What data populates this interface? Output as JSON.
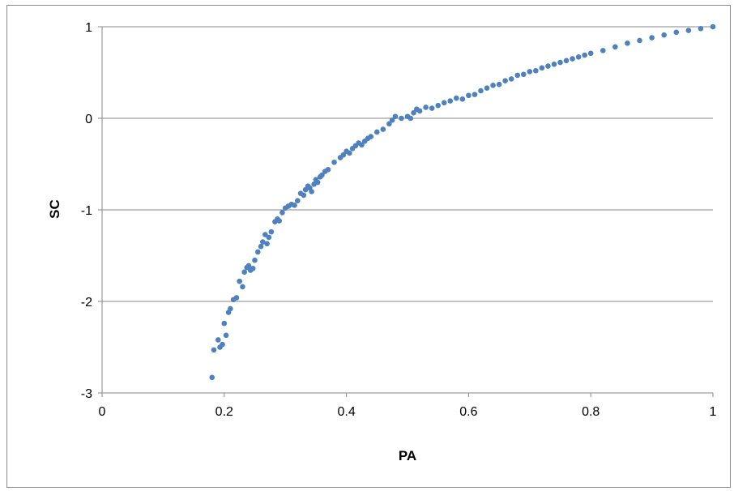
{
  "chart_data": {
    "type": "scatter",
    "title": "",
    "xlabel": "PA",
    "ylabel": "SC",
    "xlim": [
      0,
      1
    ],
    "ylim": [
      -3,
      1
    ],
    "x_ticks": [
      "0",
      "0.2",
      "0.4",
      "0.6",
      "0.8",
      "1"
    ],
    "y_ticks": [
      "1",
      "0",
      "-1",
      "-2",
      "-3"
    ],
    "grid": "horizontal",
    "legend": "none",
    "marker_color": "#4f81bd",
    "series": [
      {
        "points": [
          [
            0.18,
            -2.83
          ],
          [
            0.183,
            -2.53
          ],
          [
            0.19,
            -2.42
          ],
          [
            0.193,
            -2.5
          ],
          [
            0.197,
            -2.47
          ],
          [
            0.2,
            -2.24
          ],
          [
            0.203,
            -2.37
          ],
          [
            0.207,
            -2.12
          ],
          [
            0.21,
            -2.08
          ],
          [
            0.215,
            -1.98
          ],
          [
            0.22,
            -1.96
          ],
          [
            0.225,
            -1.78
          ],
          [
            0.23,
            -1.84
          ],
          [
            0.233,
            -1.68
          ],
          [
            0.237,
            -1.63
          ],
          [
            0.24,
            -1.61
          ],
          [
            0.243,
            -1.66
          ],
          [
            0.247,
            -1.64
          ],
          [
            0.25,
            -1.55
          ],
          [
            0.255,
            -1.46
          ],
          [
            0.26,
            -1.4
          ],
          [
            0.263,
            -1.35
          ],
          [
            0.267,
            -1.27
          ],
          [
            0.27,
            -1.37
          ],
          [
            0.273,
            -1.3
          ],
          [
            0.277,
            -1.24
          ],
          [
            0.283,
            -1.13
          ],
          [
            0.287,
            -1.1
          ],
          [
            0.29,
            -1.12
          ],
          [
            0.295,
            -1.03
          ],
          [
            0.3,
            -0.98
          ],
          [
            0.305,
            -0.96
          ],
          [
            0.31,
            -0.94
          ],
          [
            0.315,
            -0.95
          ],
          [
            0.32,
            -0.9
          ],
          [
            0.325,
            -0.82
          ],
          [
            0.33,
            -0.84
          ],
          [
            0.333,
            -0.78
          ],
          [
            0.337,
            -0.74
          ],
          [
            0.34,
            -0.76
          ],
          [
            0.343,
            -0.8
          ],
          [
            0.347,
            -0.72
          ],
          [
            0.35,
            -0.67
          ],
          [
            0.353,
            -0.7
          ],
          [
            0.357,
            -0.64
          ],
          [
            0.36,
            -0.62
          ],
          [
            0.365,
            -0.58
          ],
          [
            0.37,
            -0.56
          ],
          [
            0.38,
            -0.48
          ],
          [
            0.39,
            -0.43
          ],
          [
            0.395,
            -0.4
          ],
          [
            0.4,
            -0.36
          ],
          [
            0.405,
            -0.38
          ],
          [
            0.41,
            -0.33
          ],
          [
            0.415,
            -0.3
          ],
          [
            0.42,
            -0.27
          ],
          [
            0.425,
            -0.29
          ],
          [
            0.43,
            -0.25
          ],
          [
            0.435,
            -0.22
          ],
          [
            0.44,
            -0.2
          ],
          [
            0.45,
            -0.15
          ],
          [
            0.46,
            -0.12
          ],
          [
            0.47,
            -0.06
          ],
          [
            0.475,
            -0.02
          ],
          [
            0.48,
            0.02
          ],
          [
            0.49,
            0.0
          ],
          [
            0.5,
            0.02
          ],
          [
            0.505,
            0.0
          ],
          [
            0.51,
            0.06
          ],
          [
            0.515,
            0.1
          ],
          [
            0.52,
            0.08
          ],
          [
            0.53,
            0.12
          ],
          [
            0.54,
            0.11
          ],
          [
            0.55,
            0.14
          ],
          [
            0.56,
            0.17
          ],
          [
            0.57,
            0.19
          ],
          [
            0.58,
            0.22
          ],
          [
            0.59,
            0.21
          ],
          [
            0.6,
            0.25
          ],
          [
            0.61,
            0.26
          ],
          [
            0.62,
            0.3
          ],
          [
            0.63,
            0.33
          ],
          [
            0.64,
            0.36
          ],
          [
            0.65,
            0.37
          ],
          [
            0.66,
            0.41
          ],
          [
            0.67,
            0.43
          ],
          [
            0.68,
            0.47
          ],
          [
            0.69,
            0.48
          ],
          [
            0.7,
            0.51
          ],
          [
            0.71,
            0.52
          ],
          [
            0.72,
            0.55
          ],
          [
            0.73,
            0.57
          ],
          [
            0.74,
            0.59
          ],
          [
            0.75,
            0.61
          ],
          [
            0.76,
            0.63
          ],
          [
            0.77,
            0.65
          ],
          [
            0.78,
            0.67
          ],
          [
            0.79,
            0.69
          ],
          [
            0.8,
            0.71
          ],
          [
            0.82,
            0.74
          ],
          [
            0.84,
            0.78
          ],
          [
            0.86,
            0.82
          ],
          [
            0.88,
            0.85
          ],
          [
            0.9,
            0.88
          ],
          [
            0.92,
            0.91
          ],
          [
            0.94,
            0.94
          ],
          [
            0.96,
            0.96
          ],
          [
            0.98,
            0.98
          ],
          [
            1.0,
            1.0
          ]
        ]
      }
    ]
  }
}
